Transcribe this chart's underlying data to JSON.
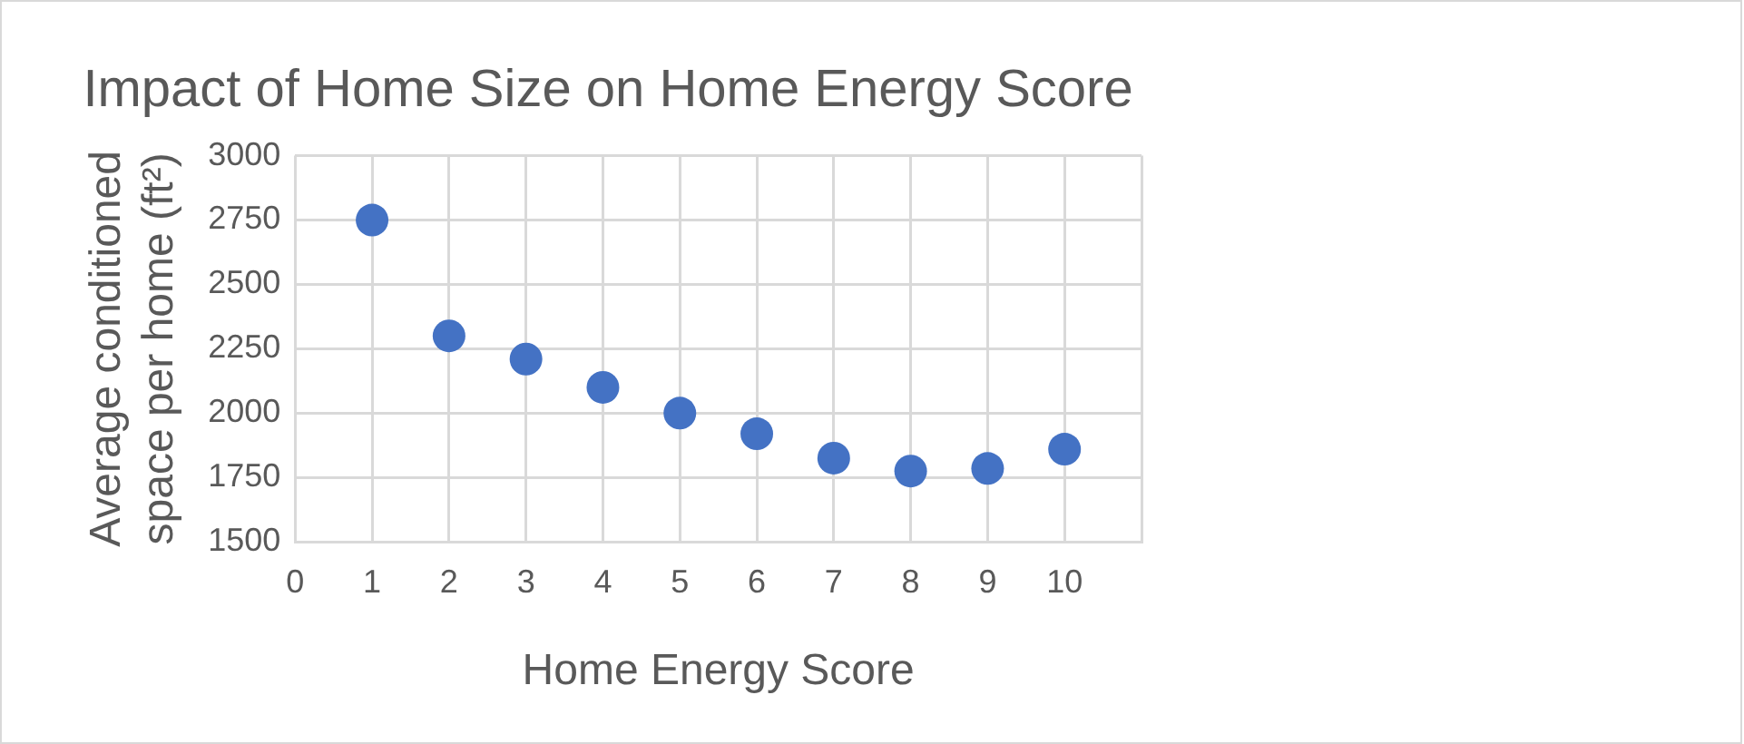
{
  "chart_data": {
    "type": "scatter",
    "title": "Impact of Home Size on Home Energy Score",
    "xlabel": "Home Energy Score",
    "ylabel": "Average conditioned space per home (ft²)",
    "x": [
      1,
      2,
      3,
      4,
      5,
      6,
      7,
      8,
      9,
      10
    ],
    "series": [
      {
        "color": "#4472c4",
        "values": [
          2750,
          2300,
          2210,
          2100,
          2000,
          1920,
          1825,
          1775,
          1785,
          1860
        ]
      }
    ],
    "xlim": [
      0,
      11
    ],
    "xticks": [
      0,
      1,
      2,
      3,
      4,
      5,
      6,
      7,
      8,
      9,
      10,
      {
        "value": 11,
        "label": null
      }
    ],
    "ylim": [
      1500,
      3000
    ],
    "yticks": [
      1500,
      1750,
      2000,
      2250,
      2500,
      2750,
      3000
    ],
    "grid": true,
    "legend": false,
    "marker": "circle"
  }
}
